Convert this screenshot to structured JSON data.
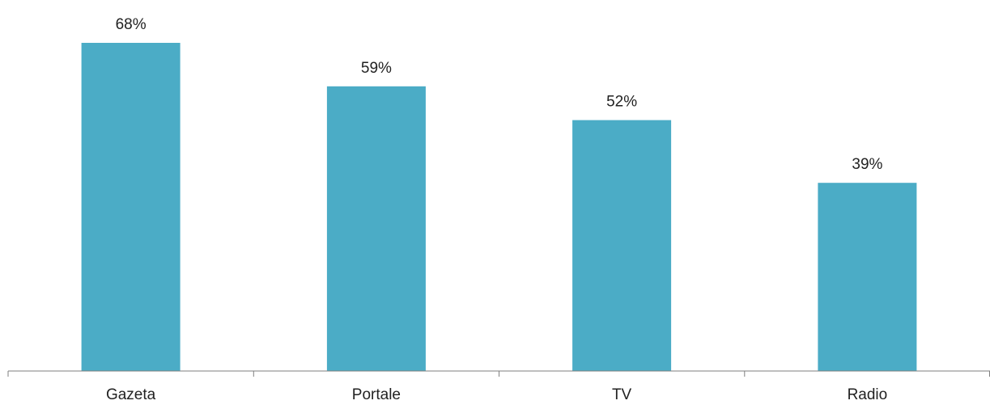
{
  "chart_data": {
    "type": "bar",
    "categories": [
      "Gazeta",
      "Portale",
      "TV",
      "Radio"
    ],
    "values": [
      68,
      59,
      52,
      39
    ],
    "value_labels": [
      "68%",
      "59%",
      "52%",
      "39%"
    ],
    "title": "",
    "xlabel": "",
    "ylabel": "",
    "ylim": [
      0,
      75
    ],
    "grid": false,
    "legend": "none",
    "bar_color": "#4BACC6",
    "axis_color": "#7F7F7F"
  }
}
